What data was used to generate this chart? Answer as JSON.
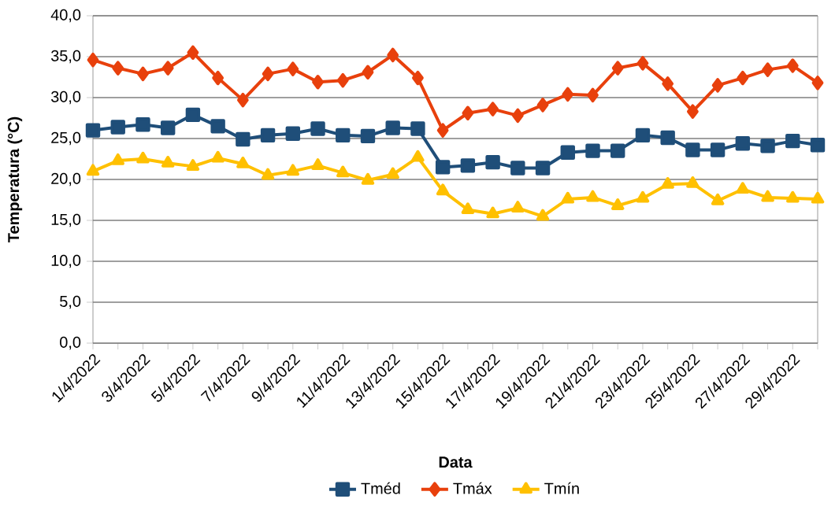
{
  "chart_data": {
    "type": "line",
    "xlabel": "Data",
    "ylabel": "Temperatura (°C)",
    "categories": [
      "1/4/2022",
      null,
      "3/4/2022",
      null,
      "5/4/2022",
      null,
      "7/4/2022",
      null,
      "9/4/2022",
      null,
      "11/4/2022",
      null,
      "13/4/2022",
      null,
      "15/4/2022",
      null,
      "17/4/2022",
      null,
      "19/4/2022",
      null,
      "21/4/2022",
      null,
      "23/4/2022",
      null,
      "25/4/2022",
      null,
      "27/4/2022",
      null,
      "29/4/2022",
      null
    ],
    "series": [
      {
        "name": "Tméd",
        "color": "#1f4e79",
        "marker": "square",
        "values": [
          26.0,
          26.4,
          26.7,
          26.3,
          27.9,
          26.5,
          24.9,
          25.4,
          25.6,
          26.2,
          25.4,
          25.3,
          26.3,
          26.2,
          21.5,
          21.7,
          22.1,
          21.4,
          21.4,
          23.3,
          23.5,
          23.5,
          25.4,
          25.1,
          23.6,
          23.6,
          24.4,
          24.1,
          24.7,
          24.2
        ]
      },
      {
        "name": "Tmáx",
        "color": "#e8400c",
        "marker": "diamond",
        "values": [
          34.6,
          33.6,
          32.9,
          33.6,
          35.5,
          32.4,
          29.7,
          32.9,
          33.5,
          31.9,
          32.1,
          33.1,
          35.2,
          32.4,
          26.0,
          28.1,
          28.6,
          27.8,
          29.1,
          30.4,
          30.3,
          33.6,
          34.2,
          31.7,
          28.3,
          31.5,
          32.4,
          33.4,
          33.9,
          31.8
        ]
      },
      {
        "name": "Tmín",
        "color": "#ffc000",
        "marker": "triangle",
        "values": [
          21.0,
          22.3,
          22.5,
          22.0,
          21.6,
          22.6,
          21.9,
          20.5,
          21.0,
          21.7,
          20.8,
          19.9,
          20.6,
          22.7,
          18.6,
          16.3,
          15.8,
          16.5,
          15.5,
          17.6,
          17.8,
          16.8,
          17.7,
          19.4,
          19.5,
          17.4,
          18.8,
          17.8,
          17.7,
          17.6
        ]
      }
    ],
    "ylim": [
      0,
      40
    ],
    "yticks": [
      {
        "value": 0,
        "label": "0,0"
      },
      {
        "value": 5,
        "label": "5,0"
      },
      {
        "value": 10,
        "label": "10,0"
      },
      {
        "value": 15,
        "label": "15,0"
      },
      {
        "value": 20,
        "label": "20,0"
      },
      {
        "value": 25,
        "label": "25,0"
      },
      {
        "value": 30,
        "label": "30,0"
      },
      {
        "value": 35,
        "label": "35,0"
      },
      {
        "value": 40,
        "label": "40,0"
      }
    ],
    "grid": "y",
    "legend": "bottom",
    "line_style": "solid"
  }
}
